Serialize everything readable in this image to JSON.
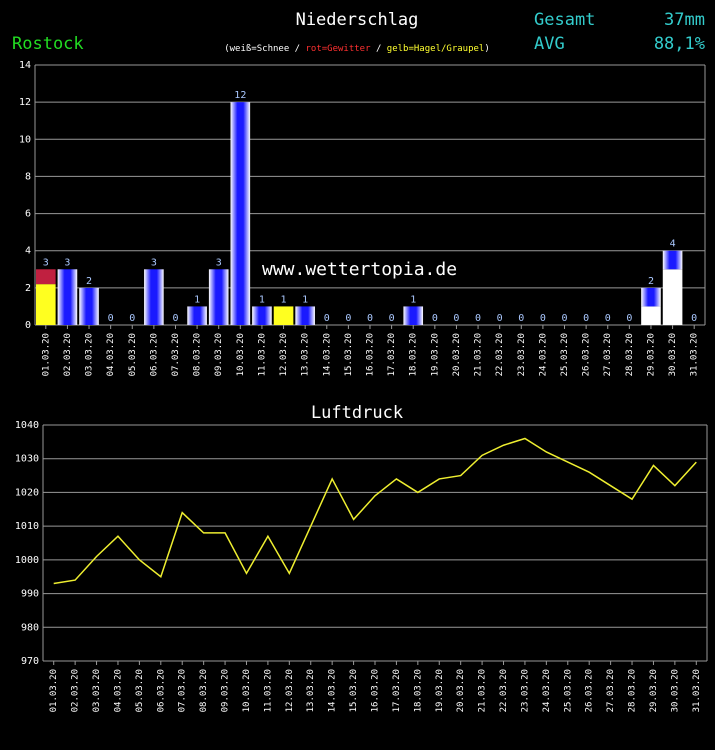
{
  "header": {
    "station": "Rostock",
    "total_label": "Gesamt",
    "total_value": "37mm",
    "avg_label": "AVG",
    "avg_value": "88,1%"
  },
  "watermark": "www.wettertopia.de",
  "chart_data": [
    {
      "type": "stacked-bar",
      "title": "Niederschlag",
      "legend_parts": [
        {
          "text": "(weiß=Schnee / ",
          "color": "#ffffff"
        },
        {
          "text": "rot=Gewitter",
          "color": "#ff3030"
        },
        {
          "text": " / ",
          "color": "#ffffff"
        },
        {
          "text": "gelb=Hagel/Graupel",
          "color": "#ffff30"
        },
        {
          "text": ")",
          "color": "#ffffff"
        }
      ],
      "categories": [
        "01.03.20",
        "02.03.20",
        "03.03.20",
        "04.03.20",
        "05.03.20",
        "06.03.20",
        "07.03.20",
        "08.03.20",
        "09.03.20",
        "10.03.20",
        "11.03.20",
        "12.03.20",
        "13.03.20",
        "14.03.20",
        "15.03.20",
        "16.03.20",
        "17.03.20",
        "18.03.20",
        "19.03.20",
        "20.03.20",
        "21.03.20",
        "22.03.20",
        "23.03.20",
        "24.03.20",
        "25.03.20",
        "26.03.20",
        "27.03.20",
        "28.03.20",
        "29.03.20",
        "30.03.20",
        "31.03.20"
      ],
      "values": [
        3,
        3,
        2,
        0,
        0,
        3,
        0,
        1,
        3,
        12,
        1,
        1,
        1,
        0,
        0,
        0,
        0,
        1,
        0,
        0,
        0,
        0,
        0,
        0,
        0,
        0,
        0,
        0,
        2,
        4,
        0
      ],
      "series": [
        {
          "color": "#ffff20",
          "values": [
            2.2,
            0,
            0,
            0,
            0,
            0,
            0,
            0,
            0,
            0,
            0,
            1,
            0,
            0,
            0,
            0,
            0,
            0,
            0,
            0,
            0,
            0,
            0,
            0,
            0,
            0,
            0,
            0,
            0,
            0,
            0
          ]
        },
        {
          "color": "#ffffff",
          "values": [
            0,
            0,
            0,
            0,
            0,
            0,
            0,
            0,
            0,
            0,
            0,
            0,
            0,
            0,
            0,
            0,
            0,
            0,
            0,
            0,
            0,
            0,
            0,
            0,
            0,
            0,
            0,
            0,
            1,
            3,
            0
          ]
        },
        {
          "color": "#c02040",
          "values": [
            0.8,
            0,
            0,
            0,
            0,
            0,
            0,
            0,
            0,
            0,
            0,
            0,
            0,
            0,
            0,
            0,
            0,
            0,
            0,
            0,
            0,
            0,
            0,
            0,
            0,
            0,
            0,
            0,
            0,
            0,
            0
          ]
        },
        {
          "color": "#1a1aff",
          "gradient": true,
          "values": [
            0,
            3,
            2,
            0,
            0,
            3,
            0,
            1,
            3,
            12,
            1,
            0,
            1,
            0,
            0,
            0,
            0,
            1,
            0,
            0,
            0,
            0,
            0,
            0,
            0,
            0,
            0,
            0,
            1,
            1,
            0
          ]
        }
      ],
      "ylim": [
        0,
        14
      ],
      "yticks": [
        0,
        2,
        4,
        6,
        8,
        10,
        12,
        14
      ],
      "grid": true
    },
    {
      "type": "line",
      "title": "Luftdruck",
      "color": "#eeee30",
      "categories": [
        "01.03.20",
        "02.03.20",
        "03.03.20",
        "04.03.20",
        "05.03.20",
        "06.03.20",
        "07.03.20",
        "08.03.20",
        "09.03.20",
        "10.03.20",
        "11.03.20",
        "12.03.20",
        "13.03.20",
        "14.03.20",
        "15.03.20",
        "16.03.20",
        "17.03.20",
        "18.03.20",
        "19.03.20",
        "20.03.20",
        "21.03.20",
        "22.03.20",
        "23.03.20",
        "24.03.20",
        "25.03.20",
        "26.03.20",
        "27.03.20",
        "28.03.20",
        "29.03.20",
        "30.03.20",
        "31.03.20"
      ],
      "values": [
        993,
        994,
        1001,
        1007,
        1000,
        995,
        1014,
        1008,
        1008,
        996,
        1007,
        996,
        1010,
        1024,
        1012,
        1019,
        1024,
        1020,
        1024,
        1025,
        1031,
        1034,
        1036,
        1032,
        1029,
        1026,
        1022,
        1018,
        1028,
        1022,
        1029
      ],
      "ylim": [
        970,
        1040
      ],
      "yticks": [
        970,
        980,
        990,
        1000,
        1010,
        1020,
        1030,
        1040
      ],
      "grid": true
    }
  ]
}
